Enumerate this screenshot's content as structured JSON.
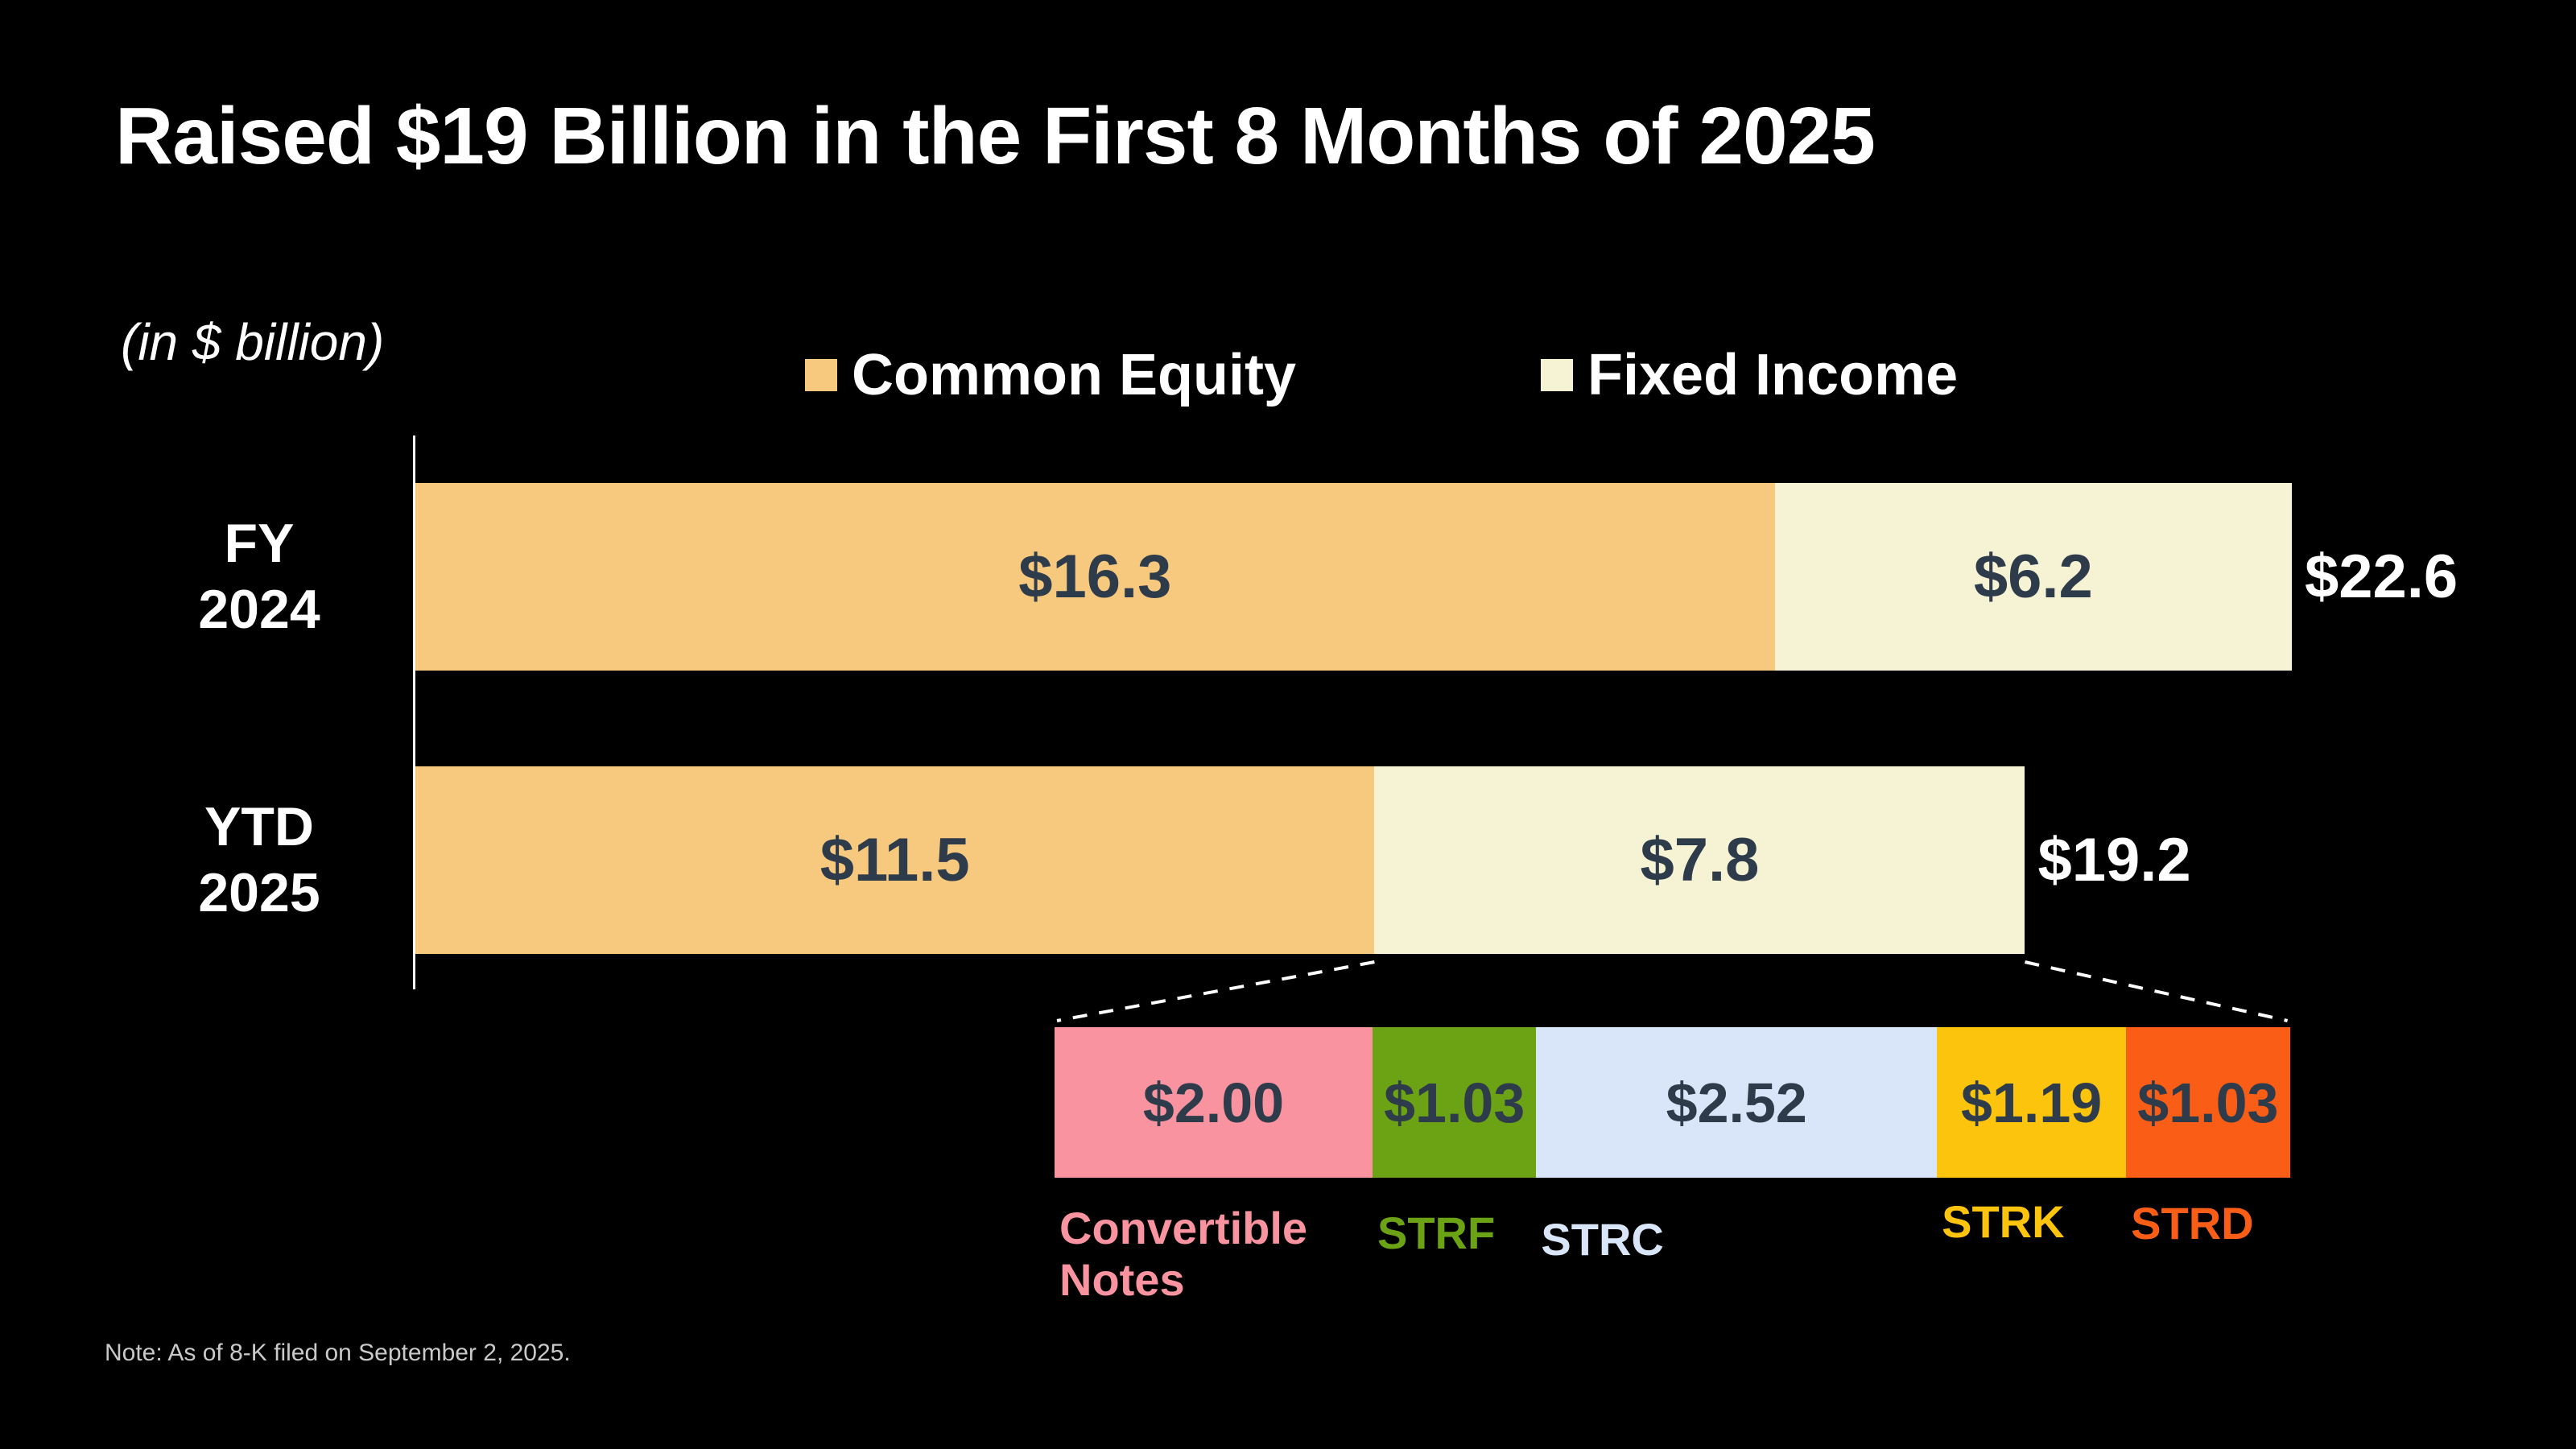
{
  "title": "Raised $19 Billion in the First 8 Months of 2025",
  "units_note": "(in $ billion)",
  "footnote": "Note: As of 8-K filed on September 2, 2025.",
  "colors": {
    "background": "#000000",
    "title_text": "#FFFFFF",
    "bar_value_text": "#2E3B4A",
    "total_text": "#FFFFFF",
    "axis_line": "#FFFFFF",
    "connector_line": "#FFFFFF",
    "footnote_text": "#C9C9C9"
  },
  "legend": [
    {
      "label": "Common Equity",
      "color": "#F6C97E"
    },
    {
      "label": "Fixed Income",
      "color": "#F5F3D4"
    }
  ],
  "chart_data": {
    "type": "bar",
    "orientation": "horizontal-stacked",
    "title": "Raised $19 Billion in the First 8 Months of 2025",
    "units": "in $ billion",
    "grid": false,
    "legend_position": "top-center",
    "categories": [
      "FY\n2024",
      "YTD\n2025"
    ],
    "series": [
      {
        "name": "Common Equity",
        "color": "#F6C97E",
        "values": [
          16.3,
          11.5
        ],
        "display": [
          "$16.3",
          "$11.5"
        ]
      },
      {
        "name": "Fixed Income",
        "color": "#F5F3D4",
        "values": [
          6.2,
          7.8
        ],
        "display": [
          "$6.2",
          "$7.8"
        ]
      }
    ],
    "totals": [
      22.6,
      19.2
    ],
    "totals_display": [
      "$22.6",
      "$19.2"
    ],
    "breakdown": {
      "of": "YTD 2025 Fixed Income",
      "segments": [
        {
          "label": "Convertible\nNotes",
          "value": 2.0,
          "display": "$2.00",
          "color": "#F9939F"
        },
        {
          "label": "STRF",
          "value": 1.03,
          "display": "$1.03",
          "color": "#6CA315"
        },
        {
          "label": "STRC",
          "value": 2.52,
          "display": "$2.52",
          "color": "#D9E6F9"
        },
        {
          "label": "STRK",
          "value": 1.19,
          "display": "$1.19",
          "color": "#FDC40D"
        },
        {
          "label": "STRD",
          "value": 1.03,
          "display": "$1.03",
          "color": "#FA5E16"
        }
      ]
    }
  }
}
